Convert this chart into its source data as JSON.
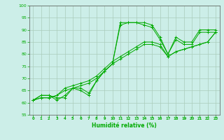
{
  "xlabel": "Humidité relative (%)",
  "bg_color": "#cceee8",
  "grid_color": "#aaccbb",
  "line_color": "#00aa00",
  "marker": "+",
  "xlim": [
    -0.5,
    23.5
  ],
  "ylim": [
    55,
    100
  ],
  "xticks": [
    0,
    1,
    2,
    3,
    4,
    5,
    6,
    7,
    8,
    9,
    10,
    11,
    12,
    13,
    14,
    15,
    16,
    17,
    18,
    19,
    20,
    21,
    22,
    23
  ],
  "yticks": [
    55,
    60,
    65,
    70,
    75,
    80,
    85,
    90,
    95,
    100
  ],
  "lines": [
    [
      61,
      63,
      63,
      62,
      62,
      66,
      66,
      64,
      69,
      73,
      76,
      93,
      93,
      93,
      93,
      92,
      87,
      80,
      87,
      85,
      85,
      90,
      90,
      90
    ],
    [
      61,
      63,
      63,
      61,
      63,
      66,
      65,
      63,
      69,
      73,
      76,
      92,
      93,
      93,
      92,
      91,
      86,
      80,
      86,
      84,
      84,
      89,
      89,
      89
    ],
    [
      61,
      62,
      62,
      63,
      66,
      67,
      68,
      69,
      71,
      74,
      77,
      79,
      81,
      83,
      85,
      85,
      84,
      79,
      81,
      82,
      83,
      84,
      85,
      89
    ],
    [
      61,
      62,
      62,
      63,
      65,
      66,
      67,
      68,
      70,
      73,
      76,
      78,
      80,
      82,
      84,
      84,
      83,
      79,
      81,
      82,
      83,
      84,
      85,
      89
    ]
  ]
}
